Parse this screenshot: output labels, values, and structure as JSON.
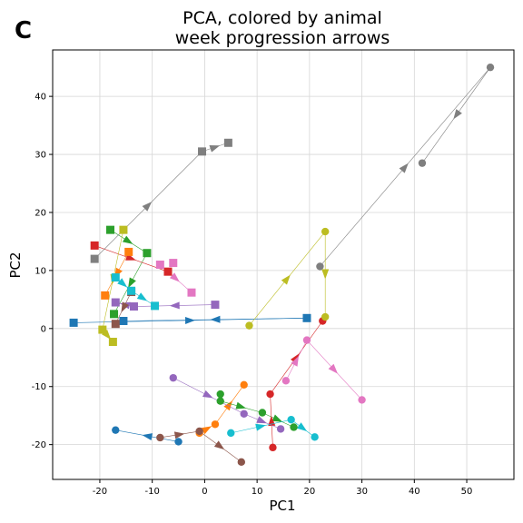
{
  "panel_letter": "C",
  "chart_data": {
    "type": "scatter",
    "title_lines": [
      "PCA, colored by animal",
      "week progression arrows"
    ],
    "xlabel": "PC1",
    "ylabel": "PC2",
    "xlim": [
      -29,
      59
    ],
    "ylim": [
      -26,
      48
    ],
    "xticks": [
      -20,
      -10,
      0,
      10,
      20,
      30,
      40,
      50
    ],
    "yticks": [
      -20,
      -10,
      0,
      10,
      20,
      30,
      40
    ],
    "grid": true,
    "legend": "none",
    "marker_shapes": [
      "square",
      "circle"
    ],
    "series": [
      {
        "color": "#1f77b4",
        "square": [
          [
            -25,
            1
          ],
          [
            19.5,
            1.8
          ],
          [
            -15.5,
            1.3
          ]
        ],
        "circle": [
          [
            -17,
            -17.5
          ],
          [
            -5,
            -19.5
          ]
        ]
      },
      {
        "color": "#ff7f0e",
        "square": [
          [
            -19,
            5.7
          ],
          [
            -14.5,
            13.2
          ]
        ],
        "circle": [
          [
            7.5,
            -9.7
          ],
          [
            2,
            -16.5
          ],
          [
            -1,
            -18
          ]
        ]
      },
      {
        "color": "#2ca02c",
        "square": [
          [
            -18,
            17
          ],
          [
            -11,
            13
          ],
          [
            -17.3,
            2.5
          ]
        ],
        "circle": [
          [
            3,
            -11.3
          ],
          [
            3,
            -12.5
          ],
          [
            11,
            -14.5
          ],
          [
            17,
            -17
          ]
        ]
      },
      {
        "color": "#d62728",
        "square": [
          [
            -21,
            14.3
          ],
          [
            -7,
            9.8
          ]
        ],
        "circle": [
          [
            13,
            -20.5
          ],
          [
            12.5,
            -11.3
          ],
          [
            22.5,
            1.3
          ]
        ]
      },
      {
        "color": "#9467bd",
        "square": [
          [
            -17,
            4.5
          ],
          [
            -13.5,
            3.8
          ],
          [
            2,
            4.1
          ]
        ],
        "circle": [
          [
            -6,
            -8.5
          ],
          [
            7.5,
            -14.7
          ],
          [
            14.5,
            -17.3
          ]
        ]
      },
      {
        "color": "#8c564b",
        "square": [
          [
            -14,
            6.3
          ],
          [
            -17,
            0.8
          ]
        ],
        "circle": [
          [
            -8.5,
            -18.8
          ],
          [
            -1,
            -17.7
          ],
          [
            7,
            -23
          ]
        ]
      },
      {
        "color": "#e377c2",
        "square": [
          [
            -8.5,
            11
          ],
          [
            -6,
            11.3
          ],
          [
            -2.5,
            6.2
          ]
        ],
        "circle": [
          [
            19.5,
            -2
          ],
          [
            15.5,
            -9
          ],
          [
            30,
            -12.3
          ]
        ]
      },
      {
        "color": "#7f7f7f",
        "square": [
          [
            -21,
            12
          ],
          [
            -0.5,
            30.5
          ],
          [
            4.5,
            32
          ]
        ],
        "circle": [
          [
            22,
            10.7
          ],
          [
            41.5,
            28.5
          ],
          [
            54.5,
            45
          ]
        ]
      },
      {
        "color": "#bcbd22",
        "square": [
          [
            -15.5,
            17
          ],
          [
            -19.5,
            -0.2
          ],
          [
            -17.5,
            -2.3
          ]
        ],
        "circle": [
          [
            8.5,
            0.5
          ],
          [
            23,
            16.7
          ],
          [
            23,
            2
          ]
        ]
      },
      {
        "color": "#17becf",
        "square": [
          [
            -17,
            8.8
          ],
          [
            -9.5,
            3.9
          ],
          [
            -14,
            6.5
          ]
        ],
        "circle": [
          [
            5,
            -18
          ],
          [
            16.5,
            -15.7
          ],
          [
            21,
            -18.7
          ]
        ]
      }
    ],
    "arrows": [
      {
        "color": "#1f77b4",
        "points": [
          [
            -25,
            1
          ],
          [
            19.5,
            1.8
          ],
          [
            -15.5,
            1.3
          ]
        ]
      },
      {
        "color": "#1f77b4",
        "points": [
          [
            -5,
            -19.5
          ],
          [
            -17,
            -17.5
          ]
        ]
      },
      {
        "color": "#ff7f0e",
        "points": [
          [
            -14.5,
            13.2
          ],
          [
            -19,
            5.7
          ]
        ]
      },
      {
        "color": "#ff7f0e",
        "points": [
          [
            -1,
            -18
          ],
          [
            2,
            -16.5
          ],
          [
            7.5,
            -9.7
          ]
        ]
      },
      {
        "color": "#2ca02c",
        "points": [
          [
            -18,
            17
          ],
          [
            -11,
            13
          ],
          [
            -17.3,
            2.5
          ]
        ]
      },
      {
        "color": "#2ca02c",
        "points": [
          [
            3,
            -11.3
          ],
          [
            3,
            -12.5
          ],
          [
            11,
            -14.5
          ],
          [
            17,
            -17
          ]
        ]
      },
      {
        "color": "#d62728",
        "points": [
          [
            -21,
            14.3
          ],
          [
            -7,
            9.8
          ]
        ]
      },
      {
        "color": "#d62728",
        "points": [
          [
            13,
            -20.5
          ],
          [
            12.5,
            -11.3
          ],
          [
            22.5,
            1.3
          ]
        ]
      },
      {
        "color": "#9467bd",
        "points": [
          [
            2,
            4.1
          ],
          [
            -13.5,
            3.8
          ],
          [
            -17,
            4.5
          ]
        ]
      },
      {
        "color": "#9467bd",
        "points": [
          [
            -6,
            -8.5
          ],
          [
            7.5,
            -14.7
          ],
          [
            14.5,
            -17.3
          ]
        ]
      },
      {
        "color": "#8c564b",
        "points": [
          [
            -14,
            6.3
          ],
          [
            -17,
            0.8
          ]
        ]
      },
      {
        "color": "#8c564b",
        "points": [
          [
            -8.5,
            -18.8
          ],
          [
            -1,
            -17.7
          ],
          [
            7,
            -23
          ]
        ]
      },
      {
        "color": "#e377c2",
        "points": [
          [
            -8.5,
            11
          ],
          [
            -2.5,
            6.2
          ]
        ]
      },
      {
        "color": "#e377c2",
        "points": [
          [
            15.5,
            -9
          ],
          [
            19.5,
            -2
          ],
          [
            30,
            -12.3
          ]
        ]
      },
      {
        "color": "#7f7f7f",
        "points": [
          [
            -21,
            12
          ],
          [
            -0.5,
            30.5
          ],
          [
            4.5,
            32
          ]
        ]
      },
      {
        "color": "#7f7f7f",
        "points": [
          [
            22,
            10.7
          ],
          [
            54.5,
            45
          ],
          [
            41.5,
            28.5
          ]
        ]
      },
      {
        "color": "#bcbd22",
        "points": [
          [
            -15.5,
            17
          ],
          [
            -19.5,
            -0.2
          ],
          [
            -17.5,
            -2.3
          ]
        ]
      },
      {
        "color": "#bcbd22",
        "points": [
          [
            8.5,
            0.5
          ],
          [
            23,
            16.7
          ],
          [
            23,
            2
          ]
        ]
      },
      {
        "color": "#17becf",
        "points": [
          [
            -17,
            8.8
          ],
          [
            -14,
            6.5
          ],
          [
            -9.5,
            3.9
          ]
        ]
      },
      {
        "color": "#17becf",
        "points": [
          [
            5,
            -18
          ],
          [
            16.5,
            -15.7
          ],
          [
            21,
            -18.7
          ]
        ]
      }
    ]
  }
}
